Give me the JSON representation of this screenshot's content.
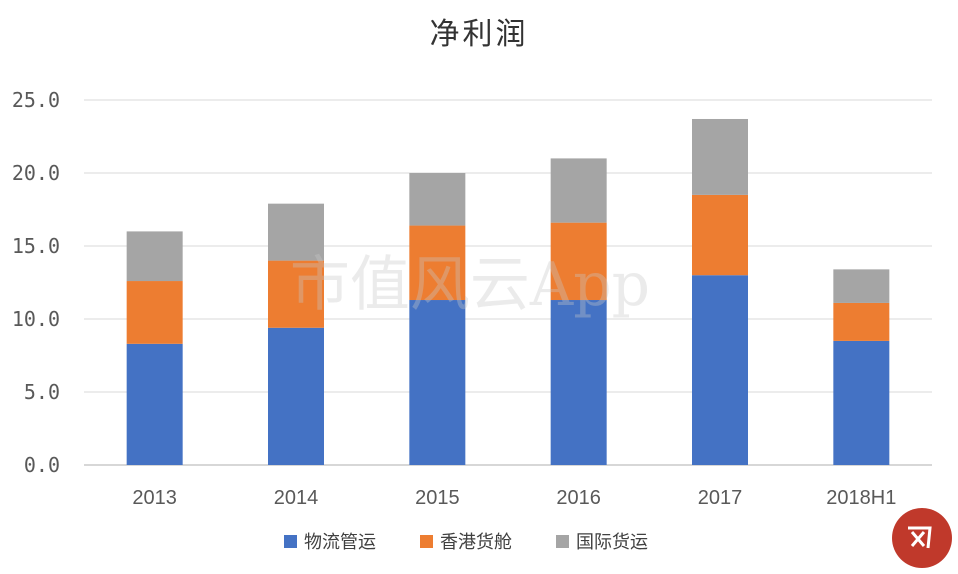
{
  "chart_data": {
    "type": "bar",
    "stacked": true,
    "title": "净利润",
    "categories": [
      "2013",
      "2014",
      "2015",
      "2016",
      "2017",
      "2018H1"
    ],
    "ylim": [
      0,
      25
    ],
    "yticks": [
      "0.0",
      "5.0",
      "10.0",
      "15.0",
      "20.0",
      "25.0"
    ],
    "grid": true,
    "legend_position": "bottom",
    "series": [
      {
        "name": "物流管运",
        "color": "#4472c4",
        "values": [
          8.3,
          9.4,
          11.3,
          11.3,
          13.0,
          8.5
        ]
      },
      {
        "name": "香港货舱",
        "color": "#ed7d31",
        "values": [
          4.3,
          4.6,
          5.1,
          5.3,
          5.5,
          2.6
        ]
      },
      {
        "name": "国际货运",
        "color": "#a5a5a5",
        "values": [
          3.4,
          3.9,
          3.6,
          4.4,
          5.2,
          2.3
        ]
      }
    ]
  },
  "watermark": "市值风云App"
}
